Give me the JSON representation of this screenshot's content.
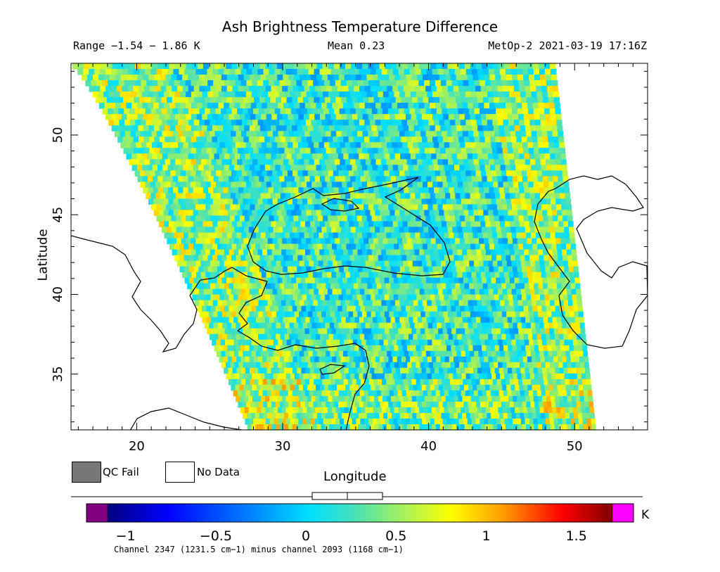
{
  "title": "Ash Brightness Temperature Difference",
  "header": {
    "range": "Range −1.54 − 1.86 K",
    "mean": "Mean 0.23",
    "source": "MetOp-2 2021-03-19 17:16Z"
  },
  "axes": {
    "x_label": "Longitude",
    "y_label": "Latitude",
    "x_ticks": [
      "20",
      "30",
      "40",
      "50"
    ],
    "y_ticks": [
      "50",
      "45",
      "40",
      "35"
    ],
    "x_range": [
      15.5,
      55
    ],
    "y_range": [
      31.5,
      54.5
    ]
  },
  "legend": {
    "qc_fail": "QC Fail",
    "no_data": "No Data",
    "qc_fail_color": "#777777",
    "no_data_color": "#ffffff"
  },
  "colorbar": {
    "unit": "K",
    "ticks": [
      "−1",
      "−0.5",
      "0",
      "0.5",
      "1",
      "1.5"
    ],
    "tick_values": [
      -1,
      -0.5,
      0,
      0.5,
      1,
      1.5
    ],
    "range": [
      -1.1,
      1.7
    ],
    "under_color": "#800080",
    "over_color": "#ff00ff",
    "caption": "Channel 2347 (1231.5 cm−1) minus channel 2093 (1168 cm−1)"
  }
}
